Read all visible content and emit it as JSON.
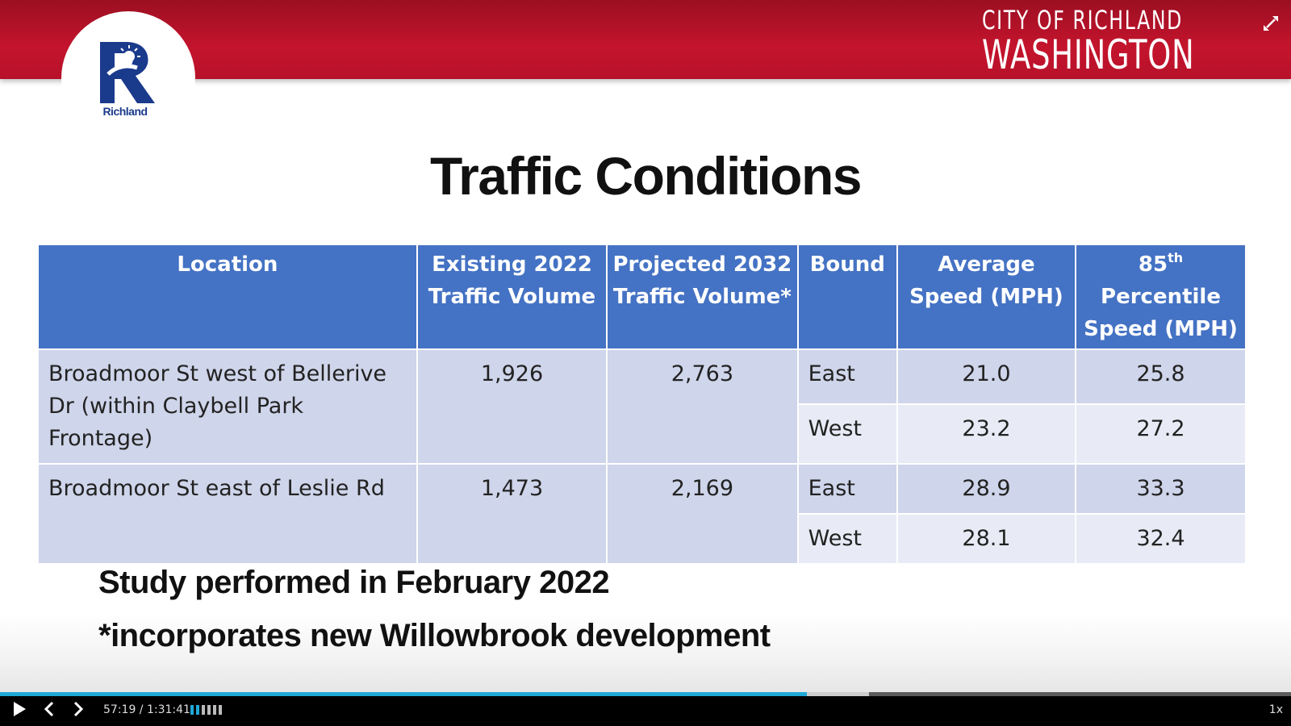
{
  "header": {
    "city_line1": "CITY OF RICHLAND",
    "city_line2": "WASHINGTON",
    "logo_text": "Richland",
    "brand_color": "#c4142d"
  },
  "slide": {
    "title": "Traffic Conditions",
    "table": {
      "headers": {
        "location": "Location",
        "existing": "Existing 2022 Traffic Volume",
        "projected": "Projected 2032 Traffic Volume*",
        "bound": "Bound",
        "average": "Average Speed (MPH)",
        "p85_num": "85",
        "p85_sup": "th",
        "p85_rest": "Percentile Speed (MPH)"
      },
      "rows": [
        {
          "location": "Broadmoor St west of Bellerive Dr (within Claybell Park Frontage)",
          "existing": "1,926",
          "projected": "2,763",
          "directions": [
            {
              "bound": "East",
              "average": "21.0",
              "p85": "25.8"
            },
            {
              "bound": "West",
              "average": "23.2",
              "p85": "27.2"
            }
          ]
        },
        {
          "location": "Broadmoor St east of Leslie Rd",
          "existing": "1,473",
          "projected": "2,169",
          "directions": [
            {
              "bound": "East",
              "average": "28.9",
              "p85": "33.3"
            },
            {
              "bound": "West",
              "average": "28.1",
              "p85": "32.4"
            }
          ]
        }
      ]
    },
    "notes": [
      "Study performed in February 2022",
      "*incorporates new Willowbrook development"
    ]
  },
  "player": {
    "time": "57:19 / 1:31:41",
    "speed": "1x",
    "progress_fraction": 0.625,
    "buffered_fraction": 0.673,
    "accent_color": "#20a8d8"
  }
}
